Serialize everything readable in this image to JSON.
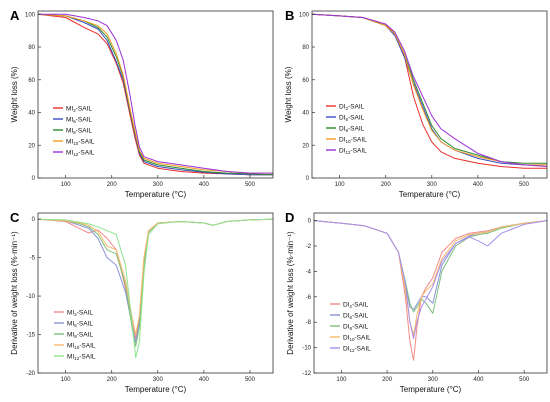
{
  "figure": {
    "panels": [
      "A",
      "B",
      "C",
      "D"
    ]
  },
  "chart_data": [
    {
      "id": "A",
      "type": "line",
      "xlabel": "Temperature (°C)",
      "ylabel": "Weight loss (%)",
      "xlim": [
        40,
        550
      ],
      "ylim": [
        0,
        102
      ],
      "xticks": [
        100,
        200,
        300,
        400,
        500
      ],
      "yticks": [
        0,
        20,
        40,
        60,
        80,
        100
      ],
      "legend_position": "center-left",
      "series": [
        {
          "name": "MI2-SAIL",
          "base": "MI",
          "sub": "2",
          "color": "#e8302c",
          "x": [
            40,
            100,
            140,
            170,
            190,
            210,
            225,
            240,
            250,
            260,
            270,
            300,
            350,
            400,
            450,
            500,
            550
          ],
          "y": [
            100,
            98,
            92,
            88,
            82,
            70,
            58,
            38,
            25,
            14,
            9,
            6,
            4,
            3,
            2.5,
            2,
            2
          ]
        },
        {
          "name": "MI6-SAIL",
          "base": "MI",
          "sub": "6",
          "color": "#3b4cc0",
          "x": [
            40,
            100,
            140,
            170,
            190,
            210,
            225,
            240,
            250,
            260,
            270,
            300,
            350,
            400,
            450,
            500,
            550
          ],
          "y": [
            100,
            99,
            95,
            91,
            84,
            71,
            60,
            40,
            27,
            15,
            10,
            7,
            5,
            3.5,
            2.5,
            2,
            2
          ]
        },
        {
          "name": "MI8-SAIL",
          "base": "MI",
          "sub": "8",
          "color": "#2e8b2e",
          "x": [
            40,
            100,
            140,
            170,
            190,
            210,
            225,
            240,
            250,
            260,
            270,
            300,
            350,
            400,
            450,
            500,
            550
          ],
          "y": [
            100,
            99,
            96,
            92,
            86,
            74,
            62,
            41,
            28,
            16,
            11,
            8,
            6,
            4,
            3,
            2.5,
            2
          ]
        },
        {
          "name": "MI10-SAIL",
          "base": "MI",
          "sub": "10",
          "color": "#f39c1f",
          "x": [
            40,
            100,
            140,
            170,
            190,
            210,
            225,
            240,
            250,
            260,
            270,
            300,
            350,
            400,
            450,
            500,
            550
          ],
          "y": [
            100,
            99,
            96,
            93,
            88,
            76,
            63,
            42,
            29,
            17,
            12,
            9,
            7,
            5,
            4,
            3,
            3
          ]
        },
        {
          "name": "MI12-SAIL",
          "base": "MI",
          "sub": "12",
          "color": "#9b30d9",
          "x": [
            40,
            100,
            140,
            170,
            190,
            210,
            225,
            240,
            250,
            260,
            270,
            300,
            350,
            400,
            450,
            500,
            550
          ],
          "y": [
            100,
            100,
            98,
            96,
            93,
            84,
            72,
            50,
            33,
            19,
            13,
            10,
            8,
            6,
            4,
            3,
            3
          ]
        }
      ]
    },
    {
      "id": "B",
      "type": "line",
      "xlabel": "Temperature (°C)",
      "ylabel": "Weight loss (%)",
      "xlim": [
        40,
        550
      ],
      "ylim": [
        0,
        102
      ],
      "xticks": [
        100,
        200,
        300,
        400,
        500
      ],
      "yticks": [
        0,
        20,
        40,
        60,
        80,
        100
      ],
      "legend_position": "center-left",
      "series": [
        {
          "name": "DI2-SAIL",
          "base": "DI",
          "sub": "2",
          "color": "#e8302c",
          "x": [
            40,
            100,
            150,
            200,
            220,
            240,
            260,
            280,
            300,
            320,
            350,
            400,
            450,
            500,
            550
          ],
          "y": [
            100,
            99,
            98,
            94,
            88,
            75,
            50,
            33,
            22,
            16,
            12,
            9,
            7,
            6,
            6
          ]
        },
        {
          "name": "DI6-SAIL",
          "base": "DI",
          "sub": "6",
          "color": "#3b4cc0",
          "x": [
            40,
            100,
            150,
            200,
            220,
            240,
            260,
            280,
            300,
            320,
            350,
            400,
            450,
            500,
            550
          ],
          "y": [
            100,
            99,
            98,
            93,
            87,
            74,
            58,
            44,
            30,
            22,
            17,
            12,
            9,
            8,
            8
          ]
        },
        {
          "name": "DI8-SAIL",
          "base": "DI",
          "sub": "8",
          "color": "#2e8b2e",
          "x": [
            40,
            100,
            150,
            200,
            220,
            240,
            260,
            280,
            300,
            320,
            350,
            400,
            450,
            500,
            550
          ],
          "y": [
            100,
            99,
            98,
            93,
            88,
            76,
            60,
            46,
            32,
            24,
            18,
            14,
            10,
            9,
            9
          ]
        },
        {
          "name": "DI10-SAIL",
          "base": "DI",
          "sub": "10",
          "color": "#f39c1f",
          "x": [
            40,
            100,
            150,
            200,
            220,
            240,
            260,
            280,
            300,
            320,
            350,
            400,
            450,
            500,
            550
          ],
          "y": [
            100,
            99,
            98,
            93,
            88,
            76,
            57,
            42,
            29,
            22,
            17,
            13,
            10,
            8,
            8
          ]
        },
        {
          "name": "DI12-SAIL",
          "base": "DI",
          "sub": "12",
          "color": "#9b30d9",
          "x": [
            40,
            100,
            150,
            200,
            220,
            240,
            260,
            280,
            300,
            320,
            350,
            400,
            450,
            500,
            550
          ],
          "y": [
            100,
            99,
            98,
            94,
            89,
            78,
            62,
            50,
            38,
            30,
            24,
            15,
            10,
            8,
            7
          ]
        }
      ]
    },
    {
      "id": "C",
      "type": "line",
      "xlabel": "Temperature (°C)",
      "ylabel": "Derivative of weight loss (%·min⁻¹)",
      "xlim": [
        40,
        550
      ],
      "ylim": [
        -20,
        0.8
      ],
      "xticks": [
        100,
        200,
        300,
        400,
        500
      ],
      "yticks": [
        0,
        -5,
        -10,
        -15,
        -20
      ],
      "legend_position": "bottom-left",
      "series": [
        {
          "name": "MI2-SAIL",
          "base": "MI",
          "sub": "2",
          "color": "#f28b88",
          "x": [
            40,
            100,
            130,
            150,
            170,
            190,
            210,
            230,
            245,
            252,
            260,
            270,
            280,
            300,
            350,
            400,
            420,
            450,
            500,
            550
          ],
          "y": [
            0,
            -0.3,
            -1.2,
            -1.8,
            -1.4,
            -2.5,
            -4,
            -9,
            -13.5,
            -15.5,
            -13,
            -5,
            -1.5,
            -0.5,
            -0.3,
            -0.5,
            -0.8,
            -0.3,
            -0.1,
            0
          ]
        },
        {
          "name": "MI6-SAIL",
          "base": "MI",
          "sub": "6",
          "color": "#8a93d6",
          "x": [
            40,
            100,
            130,
            150,
            170,
            190,
            210,
            230,
            245,
            252,
            260,
            270,
            280,
            300,
            350,
            400,
            420,
            450,
            500,
            550
          ],
          "y": [
            0,
            -0.2,
            -0.8,
            -1.2,
            -2.5,
            -5,
            -6,
            -9.5,
            -14,
            -16,
            -13.5,
            -5.5,
            -1.6,
            -0.5,
            -0.3,
            -0.5,
            -0.8,
            -0.3,
            -0.1,
            0
          ]
        },
        {
          "name": "MI8-SAIL",
          "base": "MI",
          "sub": "8",
          "color": "#7dbf7d",
          "x": [
            40,
            100,
            130,
            150,
            170,
            190,
            210,
            230,
            245,
            252,
            260,
            270,
            280,
            300,
            350,
            400,
            420,
            450,
            500,
            550
          ],
          "y": [
            0,
            -0.2,
            -0.6,
            -1,
            -2,
            -4,
            -4.5,
            -8.5,
            -14.5,
            -16.5,
            -14,
            -6,
            -1.7,
            -0.5,
            -0.3,
            -0.5,
            -0.8,
            -0.3,
            -0.1,
            0
          ]
        },
        {
          "name": "MI10-SAIL",
          "base": "MI",
          "sub": "10",
          "color": "#f7b96a",
          "x": [
            40,
            100,
            130,
            150,
            170,
            190,
            210,
            230,
            245,
            252,
            260,
            270,
            280,
            300,
            350,
            400,
            420,
            450,
            500,
            550
          ],
          "y": [
            0,
            -0.2,
            -0.5,
            -0.8,
            -1.6,
            -3.5,
            -4,
            -8,
            -13,
            -15,
            -12.5,
            -5,
            -1.5,
            -0.5,
            -0.3,
            -0.5,
            -0.8,
            -0.3,
            -0.1,
            0
          ]
        },
        {
          "name": "MI12-SAIL",
          "base": "MI",
          "sub": "12",
          "color": "#8fe38f",
          "x": [
            40,
            100,
            130,
            150,
            170,
            190,
            210,
            230,
            245,
            252,
            260,
            270,
            280,
            300,
            350,
            400,
            420,
            450,
            500,
            550
          ],
          "y": [
            0,
            -0.1,
            -0.4,
            -0.6,
            -1,
            -1.5,
            -2,
            -6,
            -14,
            -18,
            -16,
            -7,
            -2,
            -0.6,
            -0.3,
            -0.5,
            -0.8,
            -0.3,
            -0.1,
            0
          ]
        }
      ]
    },
    {
      "id": "D",
      "type": "line",
      "xlabel": "Temperature (°C)",
      "ylabel": "Derivative of weight loss (%·min⁻¹)",
      "xlim": [
        40,
        550
      ],
      "ylim": [
        -12,
        0.6
      ],
      "xticks": [
        100,
        200,
        300,
        400,
        500
      ],
      "yticks": [
        0,
        -2,
        -4,
        -6,
        -8,
        -10,
        -12
      ],
      "legend_position": "center-left",
      "series": [
        {
          "name": "DI2-SAIL",
          "base": "DI",
          "sub": "2",
          "color": "#f28b88",
          "x": [
            40,
            100,
            150,
            200,
            225,
            240,
            250,
            258,
            265,
            275,
            285,
            300,
            320,
            350,
            380,
            400,
            420,
            450,
            500,
            550
          ],
          "y": [
            0,
            -0.2,
            -0.4,
            -1,
            -2.5,
            -6,
            -9.5,
            -11,
            -8.5,
            -6,
            -5.3,
            -4.5,
            -2.5,
            -1.4,
            -1,
            -0.9,
            -0.8,
            -0.5,
            -0.2,
            0
          ]
        },
        {
          "name": "DI6-SAIL",
          "base": "DI",
          "sub": "6",
          "color": "#8a93d6",
          "x": [
            40,
            100,
            150,
            200,
            225,
            240,
            250,
            258,
            265,
            275,
            285,
            300,
            320,
            350,
            380,
            400,
            420,
            450,
            500,
            550
          ],
          "y": [
            0,
            -0.2,
            -0.4,
            -1,
            -2.5,
            -5,
            -6.8,
            -7,
            -6.6,
            -6,
            -6,
            -6.5,
            -3.5,
            -1.8,
            -1.2,
            -1,
            -0.9,
            -0.5,
            -0.2,
            0
          ]
        },
        {
          "name": "DI8-SAIL",
          "base": "DI",
          "sub": "8",
          "color": "#7dbf7d",
          "x": [
            40,
            100,
            150,
            200,
            225,
            240,
            250,
            258,
            265,
            275,
            285,
            300,
            320,
            350,
            380,
            400,
            420,
            450,
            500,
            550
          ],
          "y": [
            0,
            -0.2,
            -0.4,
            -1,
            -2.5,
            -4.8,
            -6.5,
            -7.2,
            -6.8,
            -6.2,
            -6.5,
            -7.3,
            -4,
            -2,
            -1.3,
            -1.1,
            -1,
            -0.6,
            -0.2,
            0
          ]
        },
        {
          "name": "DI10-SAIL",
          "base": "DI",
          "sub": "10",
          "color": "#f7b96a",
          "x": [
            40,
            100,
            150,
            200,
            225,
            240,
            250,
            258,
            265,
            275,
            285,
            300,
            320,
            350,
            380,
            400,
            420,
            450,
            500,
            550
          ],
          "y": [
            0,
            -0.2,
            -0.4,
            -1,
            -2.5,
            -5.5,
            -8,
            -9,
            -7.5,
            -6,
            -5.5,
            -5,
            -3,
            -1.6,
            -1.1,
            -1,
            -0.9,
            -0.5,
            -0.2,
            0
          ]
        },
        {
          "name": "DI12-SAIL",
          "base": "DI",
          "sub": "12",
          "color": "#a98ff0",
          "x": [
            40,
            100,
            150,
            200,
            225,
            240,
            250,
            258,
            265,
            275,
            285,
            300,
            320,
            350,
            380,
            400,
            420,
            450,
            500,
            550
          ],
          "y": [
            0,
            -0.2,
            -0.4,
            -1,
            -2.5,
            -5,
            -8,
            -9.3,
            -8,
            -6.8,
            -6.2,
            -5.2,
            -3.2,
            -1.8,
            -1.3,
            -1.6,
            -2,
            -1,
            -0.3,
            0
          ]
        }
      ]
    }
  ]
}
